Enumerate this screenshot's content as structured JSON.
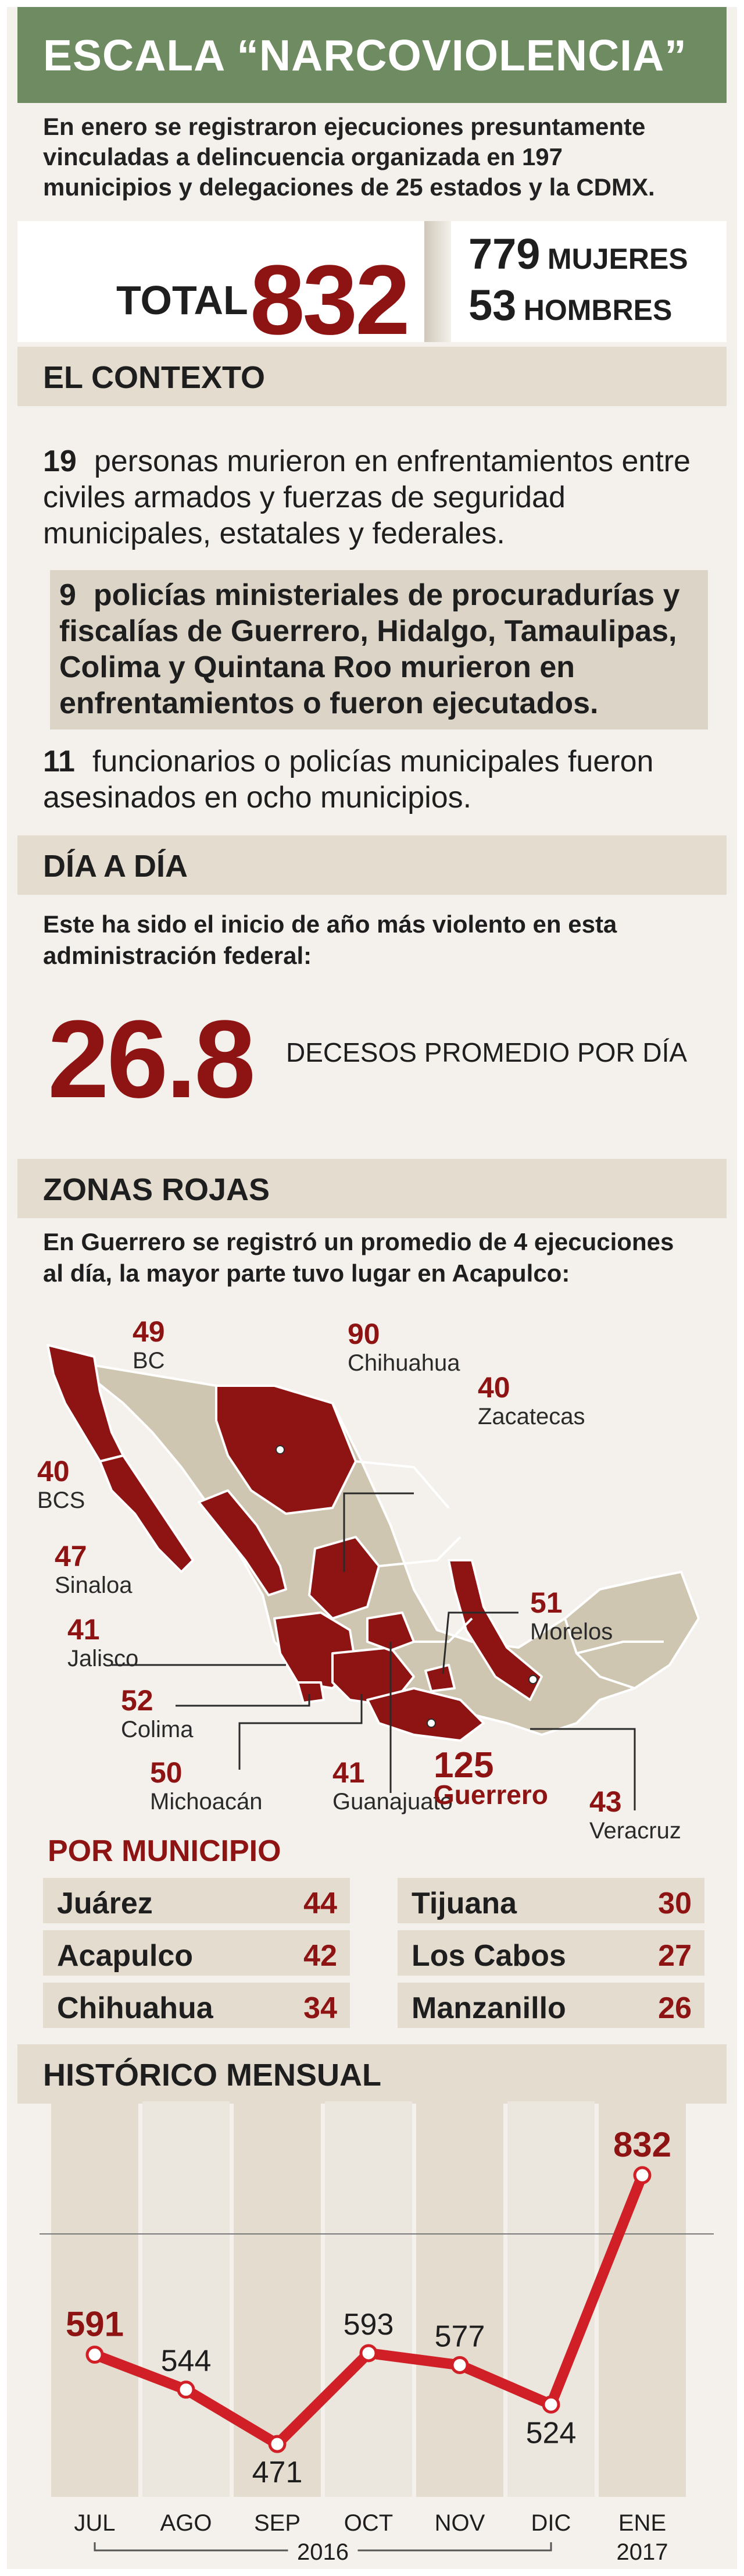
{
  "header": {
    "title": "ESCALA “NARCOVIOLENCIA”"
  },
  "intro": "En enero se registraron ejecuciones presuntamente vinculadas a delincuencia organizada en 197 municipios y delegaciones de 25 estados y la CDMX.",
  "total": {
    "label": "TOTAL",
    "value": "832",
    "women_num": "779",
    "women_label": "MUJERES",
    "men_num": "53",
    "men_label": "HOMBRES"
  },
  "contexto": {
    "heading": "EL CONTEXTO",
    "items": [
      {
        "num": "19",
        "text": "personas murieron en enfrentamientos entre civiles armados y fuerzas de seguridad municipales, estatales y federales."
      },
      {
        "num": "9",
        "text": "policías ministeriales de procuradurías y fiscalías de Guerrero, Hidalgo, Tamaulipas, Colima y Quintana Roo murieron en enfrentamientos o fueron ejecutados."
      },
      {
        "num": "11",
        "text": "funcionarios o policías municipales fueron asesinados en ocho municipios."
      }
    ]
  },
  "dia": {
    "heading": "DÍA A DÍA",
    "text": "Este ha sido el inicio de año más violento en esta administración federal:",
    "value": "26.8",
    "label": "DECESOS PROMEDIO POR DÍA"
  },
  "zonas": {
    "heading": "ZONAS ROJAS",
    "text": "En Guerrero se registró un promedio de 4 ejecuciones al día, la mayor parte tuvo lugar en Acapulco:",
    "states": [
      {
        "num": "49",
        "name": "BC"
      },
      {
        "num": "90",
        "name": "Chihuahua"
      },
      {
        "num": "40",
        "name": "Zacatecas"
      },
      {
        "num": "40",
        "name": "BCS"
      },
      {
        "num": "47",
        "name": "Sinaloa"
      },
      {
        "num": "41",
        "name": "Jalisco"
      },
      {
        "num": "51",
        "name": "Morelos"
      },
      {
        "num": "52",
        "name": "Colima"
      },
      {
        "num": "50",
        "name": "Michoacán"
      },
      {
        "num": "41",
        "name": "Guanajuato"
      },
      {
        "num": "125",
        "name": "Guerrero"
      },
      {
        "num": "43",
        "name": "Veracruz"
      }
    ]
  },
  "municipios": {
    "heading": "POR MUNICIPIO",
    "items": [
      {
        "name": "Juárez",
        "value": "44"
      },
      {
        "name": "Tijuana",
        "value": "30"
      },
      {
        "name": "Acapulco",
        "value": "42"
      },
      {
        "name": "Los Cabos",
        "value": "27"
      },
      {
        "name": "Chihuahua",
        "value": "34"
      },
      {
        "name": "Manzanillo",
        "value": "26"
      }
    ]
  },
  "historico": {
    "heading": "HISTÓRICO MENSUAL"
  },
  "chart_data": {
    "type": "line",
    "categories": [
      "JUL",
      "AGO",
      "SEP",
      "OCT",
      "NOV",
      "DIC",
      "ENE"
    ],
    "values": [
      591,
      544,
      471,
      593,
      577,
      524,
      832
    ],
    "year_labels": [
      "2016",
      "2017"
    ],
    "grid": false
  },
  "colors": {
    "accent": "#8e1414",
    "line": "#d01f26",
    "green": "#6f8b62",
    "section": "#e3dccf",
    "map_state": "#cfc6b1"
  }
}
